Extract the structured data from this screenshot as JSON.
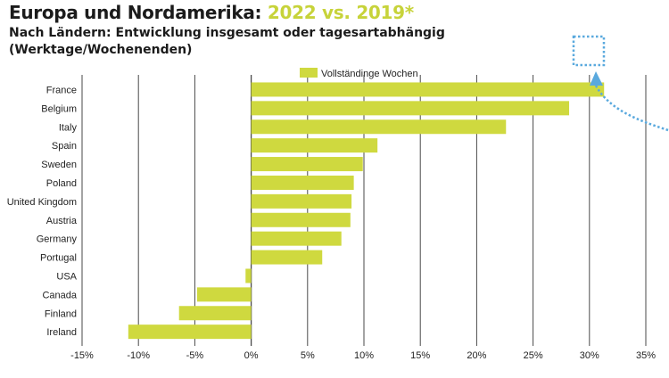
{
  "chart_data": {
    "type": "bar",
    "orientation": "horizontal",
    "title_main": "Europa und Nordamerika:",
    "title_accent": "2022 vs. 2019*",
    "subtitle_line1": "Nach Ländern: Entwicklung insgesamt oder tagesartabhängig",
    "subtitle_line2": "(Werktage/Wochenenden)",
    "categories": [
      "France",
      "Belgium",
      "Italy",
      "Spain",
      "Sweden",
      "Poland",
      "United Kingdom",
      "Austria",
      "Germany",
      "Portugal",
      "USA",
      "Canada",
      "Finland",
      "Ireland"
    ],
    "series": [
      {
        "name": "Vollständinge Wochen",
        "values": [
          31.3,
          28.2,
          22.6,
          11.2,
          9.9,
          9.1,
          8.9,
          8.8,
          8.0,
          6.3,
          -0.5,
          -4.8,
          -6.4,
          -10.9
        ]
      }
    ],
    "xlim": [
      -15,
      35
    ],
    "xticks": [
      -15,
      -10,
      -5,
      0,
      5,
      10,
      15,
      20,
      25,
      30,
      35
    ],
    "xtick_labels": [
      "-15%",
      "-10%",
      "-5%",
      "0%",
      "5%",
      "10%",
      "15%",
      "20%",
      "25%",
      "30%",
      "35%"
    ],
    "grid": "vertical",
    "legend_position": "top-center",
    "bar_color": "#cfd93f",
    "grid_color": "#4a4a4a",
    "title_accent_color": "#c7d33a",
    "annotation_color": "#5aa9de"
  }
}
